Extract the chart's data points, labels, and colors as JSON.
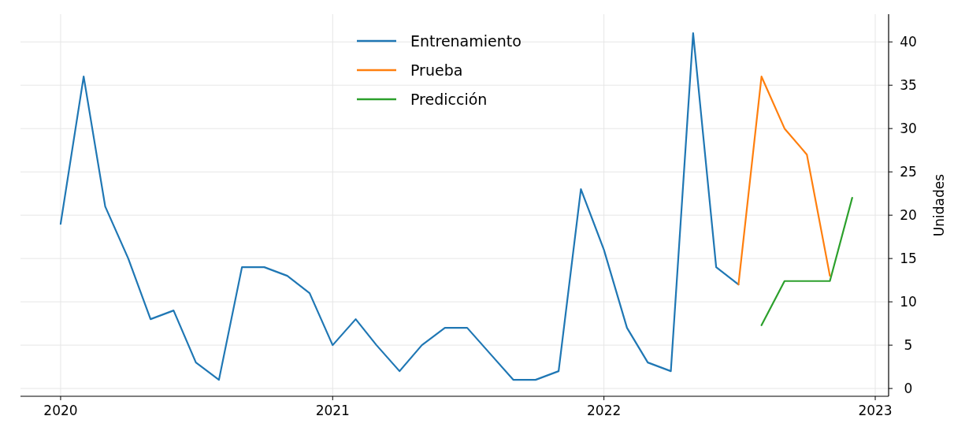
{
  "chart_data": {
    "type": "line",
    "ylabel": "Unidades",
    "series": [
      {
        "name": "Entrenamiento",
        "color": "#1f77b4",
        "x": [
          "2020-01",
          "2020-02",
          "2020-03",
          "2020-04",
          "2020-05",
          "2020-06",
          "2020-07",
          "2020-08",
          "2020-09",
          "2020-10",
          "2020-11",
          "2020-12",
          "2021-01",
          "2021-02",
          "2021-03",
          "2021-04",
          "2021-05",
          "2021-06",
          "2021-07",
          "2021-08",
          "2021-09",
          "2021-10",
          "2021-11",
          "2021-12",
          "2022-01",
          "2022-02",
          "2022-03",
          "2022-04",
          "2022-05",
          "2022-06",
          "2022-07"
        ],
        "values": [
          19,
          36,
          21,
          15,
          8,
          9,
          3,
          1,
          14,
          14,
          13,
          11,
          5,
          8,
          5,
          2,
          5,
          7,
          7,
          4,
          1,
          1,
          2,
          23,
          16,
          7,
          3,
          2,
          41,
          14,
          12
        ]
      },
      {
        "name": "Prueba",
        "color": "#ff7f0e",
        "x": [
          "2022-07",
          "2022-08",
          "2022-09",
          "2022-10",
          "2022-11"
        ],
        "values": [
          12,
          36,
          30,
          27,
          13
        ]
      },
      {
        "name": "Predicción",
        "color": "#2ca02c",
        "x": [
          "2022-08",
          "2022-09",
          "2022-10",
          "2022-11",
          "2022-12"
        ],
        "values": [
          7.3,
          12.4,
          12.4,
          12.4,
          22
        ]
      }
    ],
    "xlim": [
      "2019-11-08",
      "2023-01-19"
    ],
    "xticks": [
      {
        "value": "2020-01",
        "label": "2020"
      },
      {
        "value": "2021-01",
        "label": "2021"
      },
      {
        "value": "2022-01",
        "label": "2022"
      },
      {
        "value": "2023-01",
        "label": "2023"
      }
    ],
    "ylim": [
      -0.9,
      43.2
    ],
    "yticks": [
      0,
      5,
      10,
      15,
      20,
      25,
      30,
      35,
      40
    ],
    "grid": true,
    "legend": "top",
    "line_style": "solid",
    "marker": "none"
  }
}
